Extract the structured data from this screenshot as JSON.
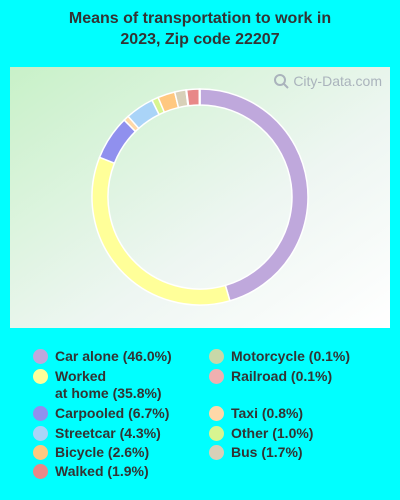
{
  "title": "Means of transportation to work in\n2023, Zip code 22207",
  "watermark": "City-Data.com",
  "chart_data": {
    "type": "pie",
    "donut": true,
    "series": [
      {
        "name": "Car alone (46.0%)",
        "value": 46.0,
        "color": "#bfa8dc"
      },
      {
        "name": "Worked\nat home (35.8%)",
        "value": 35.8,
        "color": "#ffff99"
      },
      {
        "name": "Carpooled (6.7%)",
        "value": 6.7,
        "color": "#9090ee"
      },
      {
        "name": "Taxi (0.8%)",
        "value": 0.8,
        "color": "#ffd8a8"
      },
      {
        "name": "Streetcar (4.3%)",
        "value": 4.3,
        "color": "#aad4f8"
      },
      {
        "name": "Other (1.0%)",
        "value": 1.0,
        "color": "#d8f590"
      },
      {
        "name": "Bicycle (2.6%)",
        "value": 2.6,
        "color": "#ffc880"
      },
      {
        "name": "Bus (1.7%)",
        "value": 1.7,
        "color": "#d8d0b8"
      },
      {
        "name": "Motorcycle (0.1%)",
        "value": 0.1,
        "color": "#c8d8a8"
      },
      {
        "name": "Walked (1.9%)",
        "value": 1.9,
        "color": "#e88888"
      },
      {
        "name": "Railroad (0.1%)",
        "value": 0.1,
        "color": "#f0b0b0"
      }
    ],
    "legend_left": [
      "Car alone (46.0%)",
      "Worked\nat home (35.8%)",
      "Carpooled (6.7%)",
      "Streetcar (4.3%)",
      "Bicycle (2.6%)",
      "Walked (1.9%)"
    ],
    "legend_right": [
      "Motorcycle (0.1%)",
      "Railroad (0.1%)",
      "Taxi (0.8%)",
      "Other (1.0%)",
      "Bus (1.7%)"
    ],
    "legend_placement": "bottom"
  }
}
